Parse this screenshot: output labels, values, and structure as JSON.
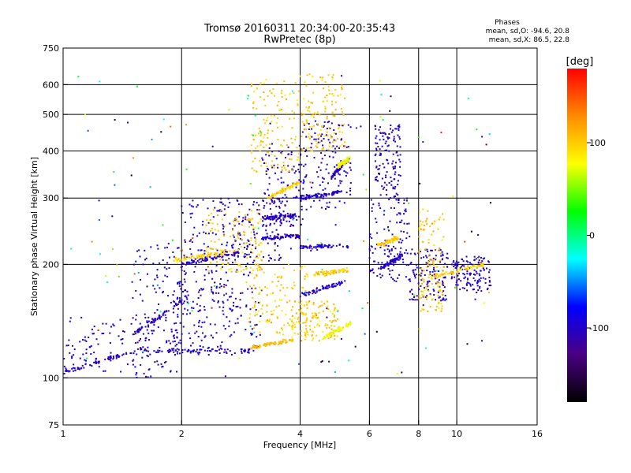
{
  "chart_data": {
    "type": "scatter",
    "title": "Tromsø 20160311 20:34:00-20:35:43",
    "subtitle": "RwPretec (8p)",
    "xlabel": "Frequency [MHz]",
    "ylabel": "Stationary phase Virtual Height [km]",
    "x_scale": "log2",
    "y_scale": "log",
    "xlim": [
      1,
      16
    ],
    "ylim": [
      75,
      750
    ],
    "x_ticks": [
      1,
      2,
      4,
      6,
      8,
      10,
      16
    ],
    "x_ticklabels": [
      "1",
      "2",
      "4",
      "6",
      "8",
      "10",
      "16"
    ],
    "y_ticks": [
      75,
      100,
      200,
      300,
      400,
      500,
      600,
      750
    ],
    "y_ticklabels": [
      "75",
      "100",
      "200",
      "300",
      "400",
      "500",
      "600",
      "750"
    ],
    "grid": true,
    "phase_stats": {
      "heading": "Phases",
      "line_o": "mean, sd,O: -94.6, 20.8",
      "line_x": "mean, sd,X:  86.5, 22.8"
    },
    "colorbar": {
      "label": "[deg]",
      "range": [
        -180,
        180
      ],
      "ticks": [
        100,
        0,
        -100
      ],
      "ticklabels": [
        "100",
        "0",
        "-100"
      ],
      "colormap": "rainbow",
      "colors": [
        "#000000",
        "#4b0082",
        "#0000ff",
        "#00ffff",
        "#00ff00",
        "#ffff00",
        "#ff8c00",
        "#ff0000"
      ]
    },
    "series": [
      {
        "traces": [
          {
            "x": [
              1.0,
              1.6
            ],
            "y": [
              103,
              120
            ],
            "phase": -100
          },
          {
            "x": [
              1.6,
              3.0
            ],
            "y": [
              118,
              118
            ],
            "phase": -100
          },
          {
            "x": [
              1.5,
              2.0
            ],
            "y": [
              130,
              160
            ],
            "phase": -100
          },
          {
            "x": [
              2.0,
              2.8
            ],
            "y": [
              200,
              215
            ],
            "phase": -100
          },
          {
            "x": [
              3.2,
              4.0
            ],
            "y": [
              235,
              238
            ],
            "phase": -100
          },
          {
            "x": [
              3.2,
              3.9
            ],
            "y": [
              265,
              270
            ],
            "phase": -100
          },
          {
            "x": [
              4.0,
              5.3
            ],
            "y": [
              222,
              224
            ],
            "phase": -100
          },
          {
            "x": [
              4.0,
              5.2
            ],
            "y": [
              165,
              180
            ],
            "phase": -100
          },
          {
            "x": [
              4.0,
              5.0
            ],
            "y": [
              300,
              310
            ],
            "phase": -100
          },
          {
            "x": [
              4.8,
              5.3
            ],
            "y": [
              340,
              380
            ],
            "phase": -100
          },
          {
            "x": [
              6.4,
              7.3
            ],
            "y": [
              195,
              212
            ],
            "phase": -100
          },
          {
            "x": [
              3.0,
              3.8
            ],
            "y": [
              120,
              126
            ],
            "phase": 110
          },
          {
            "x": [
              4.3,
              5.3
            ],
            "y": [
              188,
              193
            ],
            "phase": 100
          },
          {
            "x": [
              4.6,
              5.4
            ],
            "y": [
              128,
              140
            ],
            "phase": 80
          },
          {
            "x": [
              5.0,
              5.4
            ],
            "y": [
              365,
              385
            ],
            "phase": 80
          },
          {
            "x": [
              3.3,
              4.0
            ],
            "y": [
              300,
              330
            ],
            "phase": 100
          },
          {
            "x": [
              8.6,
              11.7
            ],
            "y": [
              185,
              200
            ],
            "phase": 100
          },
          {
            "x": [
              6.3,
              7.1
            ],
            "y": [
              225,
              235
            ],
            "phase": 100
          },
          {
            "x": [
              1.9,
              2.6
            ],
            "y": [
              205,
              215
            ],
            "phase": 100
          }
        ],
        "clouds": [
          {
            "x": [
              1.0,
              2.0
            ],
            "y": [
              100,
              145
            ],
            "phase": -100
          },
          {
            "x": [
              1.5,
              2.3
            ],
            "y": [
              115,
              230
            ],
            "phase": -100
          },
          {
            "x": [
              1.9,
              3.2
            ],
            "y": [
              115,
              180
            ],
            "phase": -100
          },
          {
            "x": [
              2.0,
              3.0
            ],
            "y": [
              150,
              300
            ],
            "phase": -100
          },
          {
            "x": [
              2.5,
              3.6
            ],
            "y": [
              200,
              300
            ],
            "phase": -100
          },
          {
            "x": [
              3.2,
              4.2
            ],
            "y": [
              250,
              420
            ],
            "phase": -100
          },
          {
            "x": [
              4.0,
              5.4
            ],
            "y": [
              280,
              480
            ],
            "phase": -100
          },
          {
            "x": [
              6.0,
              7.6
            ],
            "y": [
              180,
              300
            ],
            "phase": -100
          },
          {
            "x": [
              6.2,
              7.2
            ],
            "y": [
              300,
              470
            ],
            "phase": -100
          },
          {
            "x": [
              7.6,
              9.5
            ],
            "y": [
              160,
              220
            ],
            "phase": -100
          },
          {
            "x": [
              9.7,
              12.2
            ],
            "y": [
              170,
              210
            ],
            "phase": -100
          },
          {
            "x": [
              2.9,
              4.2
            ],
            "y": [
              130,
              200
            ],
            "phase": 100
          },
          {
            "x": [
              3.0,
              4.0
            ],
            "y": [
              350,
              620
            ],
            "phase": 100
          },
          {
            "x": [
              4.0,
              5.2
            ],
            "y": [
              400,
              640
            ],
            "phase": 100
          },
          {
            "x": [
              3.8,
              5.0
            ],
            "y": [
              125,
              160
            ],
            "phase": 100
          },
          {
            "x": [
              2.3,
              3.2
            ],
            "y": [
              190,
              280
            ],
            "phase": 100
          },
          {
            "x": [
              8.0,
              9.3
            ],
            "y": [
              150,
              280
            ],
            "phase": 100
          },
          {
            "x": [
              1.0,
              12.5
            ],
            "y": [
              100,
              650
            ],
            "phase": "mixed"
          }
        ]
      }
    ]
  }
}
